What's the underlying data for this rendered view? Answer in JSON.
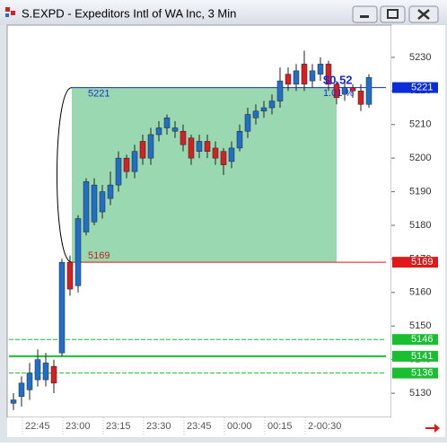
{
  "window_title": "S.EXPD - Expeditors Intl of WA Inc, 3 Min",
  "chart_data": {
    "type": "candlestick",
    "categories": [
      null,
      "22:45",
      null,
      null,
      null,
      null,
      "23:00",
      null,
      null,
      null,
      null,
      "23:15",
      null,
      null,
      null,
      null,
      "23:30",
      null,
      null,
      null,
      null,
      "23:45",
      null,
      null,
      null,
      null,
      "00:00",
      null,
      null,
      null,
      null,
      "00:15",
      null,
      null,
      null,
      null,
      "2-00:30",
      null,
      null,
      null,
      null,
      null,
      null,
      null,
      null
    ],
    "open": [
      5127,
      5129,
      5131,
      5134,
      5134,
      5138,
      5142,
      5169,
      5162,
      5178,
      5181,
      5184,
      5188,
      5192,
      5200,
      5196,
      5205,
      5200,
      5207,
      5209,
      5208,
      5208,
      5206,
      5202,
      5205,
      5203,
      5202,
      5199,
      5203,
      5208,
      5212,
      5214,
      5215,
      5217,
      5225,
      5222,
      5228,
      5223,
      5225,
      5228,
      5222,
      5219,
      5221,
      5220,
      5216
    ],
    "high": [
      5130,
      5135,
      5139,
      5143,
      5142,
      5140,
      5170,
      5171,
      5183,
      5194,
      5194,
      5192,
      5196,
      5202,
      5201,
      5204,
      5207,
      5209,
      5211,
      5213,
      5211,
      5210,
      5207,
      5207,
      5207,
      5205,
      5203,
      5205,
      5210,
      5215,
      5216,
      5217,
      5219,
      5227,
      5227,
      5228,
      5232,
      5228,
      5230,
      5229,
      5223,
      5223,
      5222,
      5222,
      5225
    ],
    "low": [
      5125,
      5126,
      5128,
      5132,
      5132,
      5130,
      5141,
      5159,
      5160,
      5177,
      5180,
      5182,
      5186,
      5190,
      5194,
      5194,
      5198,
      5198,
      5205,
      5207,
      5206,
      5202,
      5198,
      5200,
      5200,
      5198,
      5195,
      5197,
      5202,
      5206,
      5210,
      5212,
      5213,
      5215,
      5220,
      5220,
      5220,
      5221,
      5223,
      5220,
      5216,
      5217,
      5218,
      5214,
      5215
    ],
    "close": [
      5128,
      5133,
      5136,
      5140,
      5139,
      5133,
      5169,
      5161,
      5182,
      5193,
      5192,
      5190,
      5192,
      5200,
      5196,
      5202,
      5200,
      5207,
      5209,
      5212,
      5209,
      5204,
      5200,
      5205,
      5202,
      5200,
      5198,
      5203,
      5208,
      5213,
      5214,
      5215,
      5217,
      5223,
      5222,
      5226,
      5222,
      5226,
      5228,
      5222,
      5218,
      5221,
      5220,
      5216,
      5224
    ],
    "up_color": "#1f6fc8",
    "down_color": "#d42020",
    "ylim": [
      5122.8,
      5239.6
    ],
    "yticks": [
      5130,
      5140,
      5150,
      5160,
      5170,
      5180,
      5190,
      5200,
      5210,
      5220,
      5230
    ],
    "levels": [
      {
        "value": 5221,
        "color": "#0a2dd8"
      },
      {
        "value": 5169,
        "color": "#e01818"
      },
      {
        "value": 5146,
        "color": "#18c030"
      },
      {
        "value": 5141,
        "color": "#18c030"
      },
      {
        "value": 5136,
        "color": "#18c030"
      }
    ],
    "zone_color": "#8fd4a8",
    "annotations": [
      "$0.52",
      "1.01 %"
    ]
  }
}
